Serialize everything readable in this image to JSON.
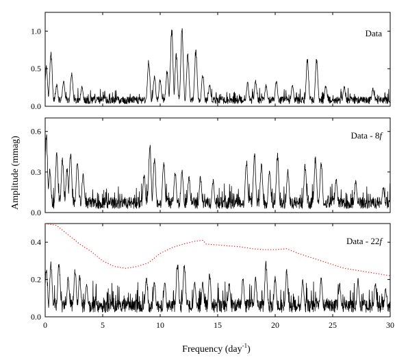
{
  "chart_data": [
    {
      "type": "line",
      "panel_label": "Data",
      "xlim": [
        0,
        30
      ],
      "ylim": [
        0,
        1.25
      ],
      "y_ticks": [
        0.0,
        0.5,
        1.0
      ],
      "y_tick_labels": [
        "0.0",
        "0.5",
        "1.0"
      ],
      "grid": false,
      "series": [
        {
          "color": "#000000",
          "baseline": 0.09,
          "noise": 0.06,
          "peaks": [
            [
              0.1,
              0.55
            ],
            [
              0.5,
              0.76
            ],
            [
              1.0,
              0.3
            ],
            [
              1.6,
              0.35
            ],
            [
              2.3,
              0.48
            ],
            [
              3.2,
              0.28
            ],
            [
              9.0,
              0.64
            ],
            [
              9.5,
              0.42
            ],
            [
              10.0,
              0.38
            ],
            [
              10.6,
              0.5
            ],
            [
              11.0,
              1.07
            ],
            [
              11.4,
              0.72
            ],
            [
              11.9,
              1.07
            ],
            [
              12.4,
              0.72
            ],
            [
              13.1,
              0.8
            ],
            [
              13.7,
              0.45
            ],
            [
              14.3,
              0.3
            ],
            [
              17.6,
              0.33
            ],
            [
              18.3,
              0.36
            ],
            [
              19.2,
              0.3
            ],
            [
              20.1,
              0.36
            ],
            [
              21.5,
              0.3
            ],
            [
              22.8,
              0.67
            ],
            [
              23.6,
              0.67
            ],
            [
              24.4,
              0.3
            ],
            [
              26.0,
              0.28
            ],
            [
              28.5,
              0.25
            ]
          ]
        }
      ]
    },
    {
      "type": "line",
      "panel_label": "Data - 8",
      "panel_label_italic": "f",
      "xlim": [
        0,
        30
      ],
      "ylim": [
        0,
        0.7
      ],
      "y_ticks": [
        0.0,
        0.3,
        0.6
      ],
      "y_tick_labels": [
        "0.0",
        "0.3",
        "0.6"
      ],
      "grid": false,
      "series": [
        {
          "color": "#000000",
          "baseline": 0.08,
          "noise": 0.05,
          "peaks": [
            [
              0.1,
              0.6
            ],
            [
              0.4,
              0.33
            ],
            [
              1.0,
              0.46
            ],
            [
              1.5,
              0.42
            ],
            [
              1.9,
              0.35
            ],
            [
              2.2,
              0.47
            ],
            [
              2.8,
              0.4
            ],
            [
              3.3,
              0.3
            ],
            [
              8.6,
              0.3
            ],
            [
              9.1,
              0.52
            ],
            [
              9.5,
              0.43
            ],
            [
              10.3,
              0.4
            ],
            [
              11.3,
              0.32
            ],
            [
              11.9,
              0.33
            ],
            [
              12.5,
              0.28
            ],
            [
              13.5,
              0.28
            ],
            [
              14.6,
              0.25
            ],
            [
              17.5,
              0.4
            ],
            [
              18.2,
              0.45
            ],
            [
              18.8,
              0.38
            ],
            [
              19.5,
              0.34
            ],
            [
              20.2,
              0.46
            ],
            [
              21.1,
              0.33
            ],
            [
              22.6,
              0.37
            ],
            [
              23.5,
              0.43
            ],
            [
              24.0,
              0.4
            ],
            [
              25.3,
              0.26
            ],
            [
              27.0,
              0.25
            ],
            [
              29.4,
              0.2
            ]
          ]
        }
      ]
    },
    {
      "type": "line",
      "panel_label": "Data - 22",
      "panel_label_italic": "f",
      "xlim": [
        0,
        30
      ],
      "ylim": [
        0,
        0.5
      ],
      "y_ticks": [
        0.0,
        0.2,
        0.4
      ],
      "y_tick_labels": [
        "0.0",
        "0.2",
        "0.4"
      ],
      "x_ticks": [
        0,
        5,
        10,
        15,
        20,
        25,
        30
      ],
      "x_tick_labels": [
        "0",
        "5",
        "10",
        "15",
        "20",
        "25",
        "30"
      ],
      "xlabel": "Frequency (day",
      "xlabel_sup": "-1",
      "xlabel_end": ")",
      "grid": false,
      "series": [
        {
          "color": "#000000",
          "baseline": 0.065,
          "noise": 0.05,
          "peaks": [
            [
              0.1,
              0.27
            ],
            [
              0.5,
              0.3
            ],
            [
              1.2,
              0.31
            ],
            [
              2.0,
              0.22
            ],
            [
              2.6,
              0.27
            ],
            [
              3.0,
              0.23
            ],
            [
              3.6,
              0.19
            ],
            [
              8.8,
              0.22
            ],
            [
              9.5,
              0.2
            ],
            [
              10.4,
              0.2
            ],
            [
              11.5,
              0.31
            ],
            [
              12.1,
              0.3
            ],
            [
              13.0,
              0.2
            ],
            [
              13.7,
              0.19
            ],
            [
              14.3,
              0.24
            ],
            [
              16.0,
              0.19
            ],
            [
              17.2,
              0.22
            ],
            [
              18.3,
              0.22
            ],
            [
              19.2,
              0.31
            ],
            [
              20.0,
              0.22
            ],
            [
              21.0,
              0.26
            ],
            [
              22.4,
              0.21
            ],
            [
              24.0,
              0.22
            ],
            [
              25.6,
              0.19
            ],
            [
              27.2,
              0.21
            ],
            [
              28.7,
              0.19
            ],
            [
              29.6,
              0.16
            ]
          ]
        },
        {
          "color": "#ff0000",
          "style": "dotted",
          "x": [
            0.0,
            1.0,
            2.0,
            3.0,
            4.0,
            5.0,
            6.0,
            7.0,
            8.0,
            9.0,
            10.0,
            11.0,
            12.0,
            13.0,
            13.7,
            14.0,
            15.0,
            16.0,
            17.0,
            18.0,
            19.0,
            20.0,
            21.0,
            22.0,
            23.0,
            24.0,
            25.0,
            26.0,
            27.0,
            28.0,
            29.0,
            30.0
          ],
          "y": [
            0.5,
            0.49,
            0.44,
            0.39,
            0.35,
            0.3,
            0.27,
            0.26,
            0.27,
            0.29,
            0.34,
            0.37,
            0.39,
            0.405,
            0.41,
            0.39,
            0.385,
            0.38,
            0.375,
            0.365,
            0.36,
            0.36,
            0.365,
            0.34,
            0.32,
            0.3,
            0.28,
            0.26,
            0.25,
            0.24,
            0.23,
            0.22
          ]
        }
      ]
    }
  ],
  "ylabel": "Amplitude (mmag)"
}
